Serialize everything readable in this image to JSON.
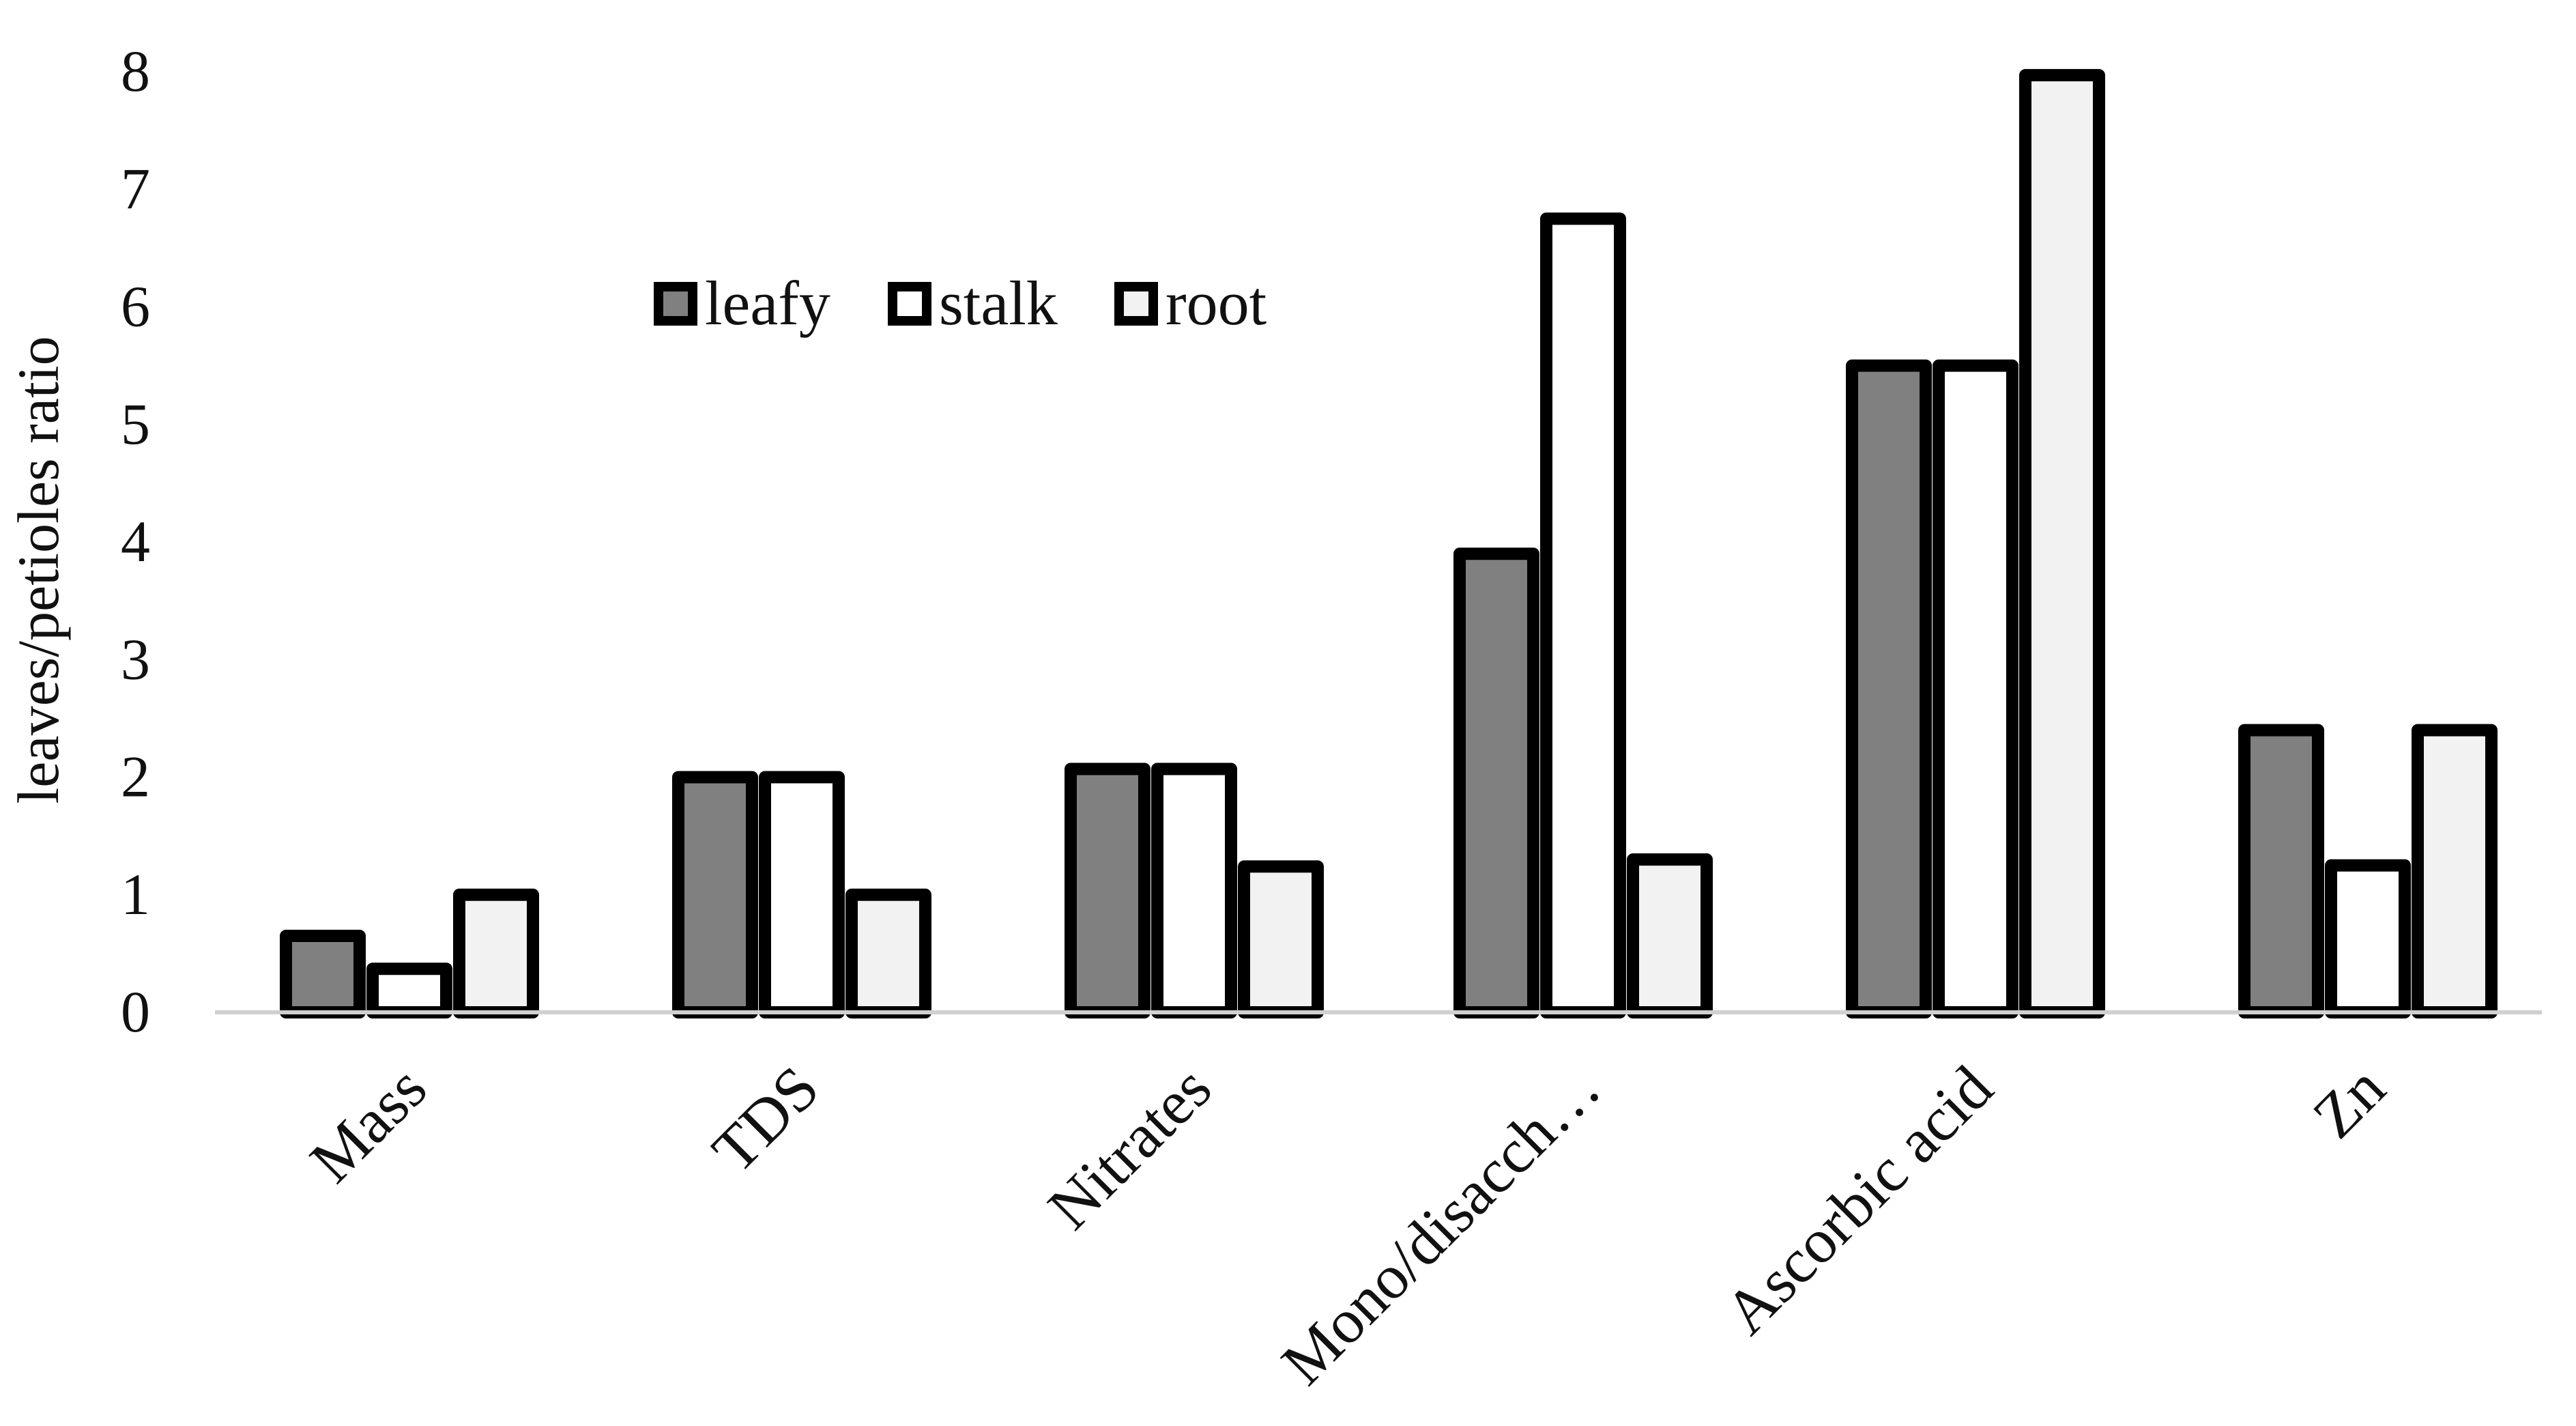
{
  "chart_data": {
    "type": "bar",
    "ylabel": "leaves/petioles ratio",
    "xlabel": "",
    "ylim": [
      0,
      8
    ],
    "yticks": [
      0,
      1,
      2,
      3,
      4,
      5,
      6,
      7,
      8
    ],
    "grid": false,
    "legend_position": "top-center",
    "categories": [
      "Mass",
      "TDS",
      "Nitrates",
      "Mono/disacch…",
      "Ascorbic acid",
      "Zn"
    ],
    "series": [
      {
        "name": "leafy",
        "color": "#808080",
        "values": [
          0.65,
          2.0,
          2.07,
          3.9,
          5.5,
          2.4
        ]
      },
      {
        "name": "stalk",
        "color": "#ffffff",
        "values": [
          0.37,
          2.0,
          2.07,
          6.75,
          5.5,
          1.25
        ]
      },
      {
        "name": "root",
        "color": "#f2f2f2",
        "values": [
          1.0,
          1.0,
          1.24,
          1.3,
          7.97,
          2.4
        ]
      }
    ]
  }
}
